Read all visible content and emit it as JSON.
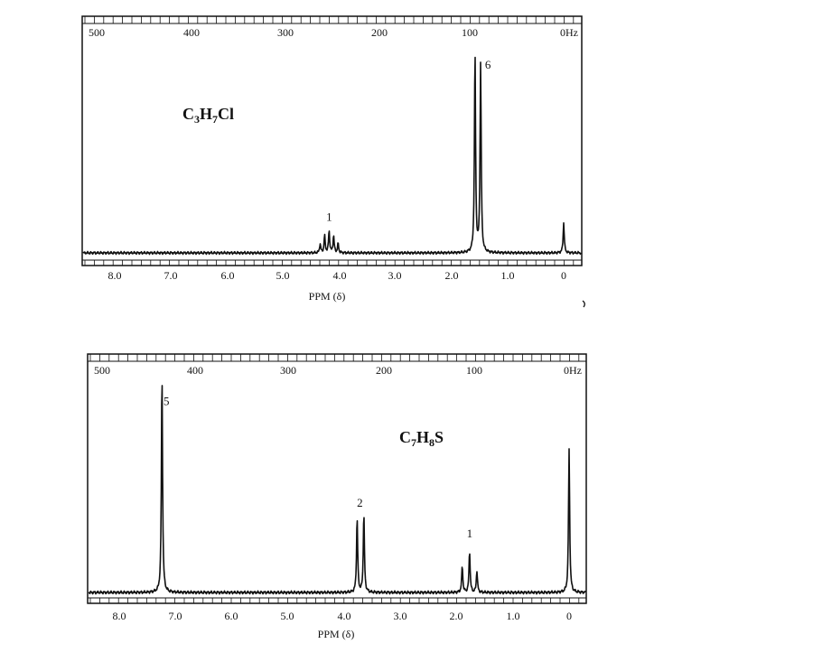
{
  "chart_data": [
    {
      "type": "line",
      "formula_parts": {
        "c": "C",
        "c_sub": "3",
        "h": "H",
        "h_sub": "7",
        "tail": "Cl"
      },
      "top_axis_ticks": [
        "500",
        "400",
        "300",
        "200",
        "100",
        "0Hz"
      ],
      "bottom_axis_ticks": [
        "8.0",
        "7.0",
        "6.0",
        "5.0",
        "4.0",
        "3.0",
        "2.0",
        "1.0",
        "0"
      ],
      "xlabel": "PPM (δ)",
      "xlim_ppm": [
        8.5,
        -0.3
      ],
      "baseline_level": 0,
      "peaks": [
        {
          "ppm": 4.34,
          "height": 0.045
        },
        {
          "ppm": 4.26,
          "height": 0.085
        },
        {
          "ppm": 4.18,
          "height": 0.11
        },
        {
          "ppm": 4.1,
          "height": 0.085
        },
        {
          "ppm": 4.02,
          "height": 0.045
        },
        {
          "ppm": 1.58,
          "height": 1.0
        },
        {
          "ppm": 1.48,
          "height": 0.94
        },
        {
          "ppm": 0.0,
          "height": 0.15
        }
      ],
      "integrals": [
        {
          "label": "1",
          "ppm": 4.18,
          "level": 0.16
        },
        {
          "label": "6",
          "ppm": 1.35,
          "level": 0.92
        }
      ]
    },
    {
      "type": "line",
      "formula_parts": {
        "c": "C",
        "c_sub": "7",
        "h": "H",
        "h_sub": "8",
        "tail": "S"
      },
      "top_axis_ticks": [
        "500",
        "400",
        "300",
        "200",
        "100",
        "0Hz"
      ],
      "bottom_axis_ticks": [
        "8.0",
        "7.0",
        "6.0",
        "5.0",
        "4.0",
        "3.0",
        "2.0",
        "1.0",
        "0"
      ],
      "xlabel": "PPM (δ)",
      "xlim_ppm": [
        8.5,
        -0.3
      ],
      "baseline_level": 0,
      "peaks": [
        {
          "ppm": 7.24,
          "height": 1.0
        },
        {
          "ppm": 3.77,
          "height": 0.34
        },
        {
          "ppm": 3.65,
          "height": 0.36
        },
        {
          "ppm": 1.9,
          "height": 0.12
        },
        {
          "ppm": 1.77,
          "height": 0.19
        },
        {
          "ppm": 1.64,
          "height": 0.1
        },
        {
          "ppm": 0.0,
          "height": 0.65
        }
      ],
      "integrals": [
        {
          "label": "5",
          "ppm": 7.0,
          "level": 0.85
        },
        {
          "label": "2",
          "ppm": 3.72,
          "level": 0.39
        },
        {
          "label": "1",
          "ppm": 1.77,
          "level": 0.25
        }
      ]
    }
  ]
}
